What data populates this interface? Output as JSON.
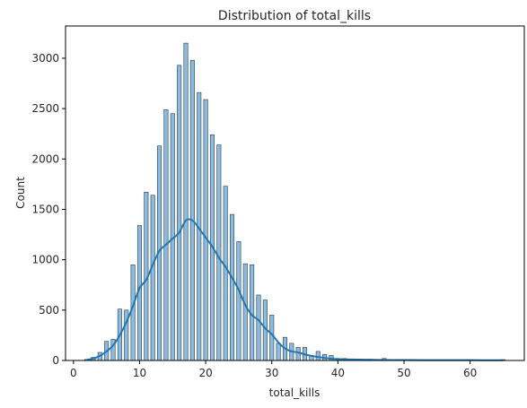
{
  "chart_data": {
    "type": "bar",
    "title": "Distribution of total_kills",
    "xlabel": "total_kills",
    "ylabel": "Count",
    "xlim": [
      -1.2,
      68.2
    ],
    "ylim": [
      0,
      3320
    ],
    "xticks": [
      0,
      10,
      20,
      30,
      40,
      50,
      60
    ],
    "yticks": [
      0,
      500,
      1000,
      1500,
      2000,
      2500,
      3000
    ],
    "grid": false,
    "legend": "none",
    "bar_color": "#1f77b4",
    "bar_opacity": 0.5,
    "bar_edge_color": "#1f3d5a",
    "kde_color": "#1f77b4",
    "bars": {
      "x": [
        2,
        3,
        4,
        5,
        6,
        7,
        8,
        9,
        10,
        11,
        12,
        13,
        14,
        15,
        16,
        17,
        18,
        19,
        20,
        21,
        22,
        23,
        24,
        25,
        26,
        27,
        28,
        29,
        30,
        31,
        32,
        33,
        34,
        35,
        36,
        37,
        38,
        39,
        40,
        41,
        42,
        43,
        44,
        45,
        46,
        47,
        48,
        49,
        50,
        51,
        52,
        53,
        54,
        55,
        56,
        57,
        58,
        59,
        60,
        61,
        62,
        63,
        64,
        65
      ],
      "values": [
        10,
        30,
        80,
        190,
        210,
        510,
        500,
        950,
        1340,
        1670,
        1640,
        2130,
        2490,
        2450,
        2930,
        3150,
        2980,
        2660,
        2590,
        2240,
        2140,
        1730,
        1450,
        1180,
        960,
        950,
        650,
        600,
        450,
        170,
        230,
        170,
        130,
        130,
        50,
        90,
        60,
        50,
        20,
        20,
        15,
        15,
        10,
        12,
        8,
        20,
        5,
        5,
        5,
        8,
        5,
        3,
        3,
        3,
        3,
        3,
        3,
        3,
        3,
        3,
        3,
        3,
        3,
        8
      ]
    },
    "kde": {
      "x": [
        2,
        3,
        4,
        5,
        6,
        7,
        8,
        9,
        10,
        11,
        12,
        13,
        14,
        15,
        16,
        17,
        18,
        19,
        20,
        21,
        22,
        23,
        24,
        25,
        26,
        27,
        28,
        29,
        30,
        31,
        32,
        33,
        34,
        35,
        36,
        37,
        38,
        39,
        40,
        42,
        44,
        46,
        48,
        50,
        55,
        60,
        65
      ],
      "y": [
        5,
        20,
        45,
        90,
        150,
        250,
        380,
        540,
        720,
        800,
        950,
        1090,
        1150,
        1210,
        1270,
        1390,
        1390,
        1310,
        1220,
        1130,
        1020,
        930,
        820,
        700,
        550,
        450,
        400,
        320,
        260,
        180,
        120,
        90,
        80,
        60,
        45,
        35,
        25,
        18,
        14,
        10,
        8,
        6,
        5,
        4,
        3,
        3,
        2
      ]
    }
  }
}
